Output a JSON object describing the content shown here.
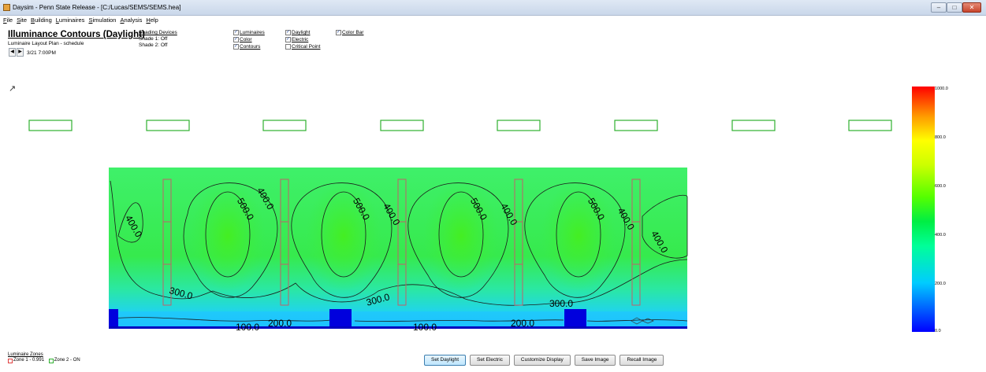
{
  "window": {
    "title": "Daysim - Penn State Release - [C:/Lucas/SEMS/SEMS.hea]",
    "icons": {
      "minimize": "minimize-icon",
      "maximize": "maximize-icon",
      "close": "close-icon"
    }
  },
  "menu": [
    "File",
    "Site",
    "Building",
    "Luminaires",
    "Simulation",
    "Analysis",
    "Help"
  ],
  "header": {
    "title": "Illuminance Contours (Daylight)",
    "subtitle": "Luminaire Layout Plan - schedule",
    "time": "3/21 7:00PM",
    "prev_glyph": "◀",
    "next_glyph": "▶"
  },
  "shading": {
    "title": "Shading Devices",
    "lines": [
      "Shade 1: Off",
      "Shade 2: Off"
    ]
  },
  "options": {
    "col1": [
      {
        "label": "Luminaires",
        "checked": true
      },
      {
        "label": "Color",
        "checked": true
      },
      {
        "label": "Contours",
        "checked": true
      }
    ],
    "col2": [
      {
        "label": "Daylight",
        "checked": true
      },
      {
        "label": "Electric",
        "checked": true
      },
      {
        "label": "Critical Point",
        "checked": false
      }
    ],
    "col3": [
      {
        "label": "Color Bar",
        "checked": true
      }
    ]
  },
  "north_arrow": "↗",
  "contour_labels": [
    "400.0",
    "500.0",
    "400.0",
    "500.0",
    "400.0",
    "500.0",
    "400.0",
    "500.0",
    "400.0",
    "400.0",
    "300.0",
    "300.0",
    "300.0",
    "100.0",
    "200.0",
    "100.0",
    "200.0"
  ],
  "colorbar": {
    "ticks": [
      "1000.0",
      "800.0",
      "600.0",
      "400.0",
      "200.0",
      "0.0"
    ],
    "colors": {
      "min": "#0000ff",
      "low": "#00ccff",
      "mid": "#00ee44",
      "high": "#ffff00",
      "max": "#ff0000"
    }
  },
  "zones": {
    "title": "Luminaire Zones",
    "items": [
      {
        "label": "Zone 1 - 0.991",
        "color": "#e04040"
      },
      {
        "label": "Zone 2 - ON",
        "color": "#30b030"
      }
    ]
  },
  "buttons": [
    "Set Daylight",
    "Set Electric",
    "Customize Display",
    "Save Image",
    "Recall Image"
  ]
}
